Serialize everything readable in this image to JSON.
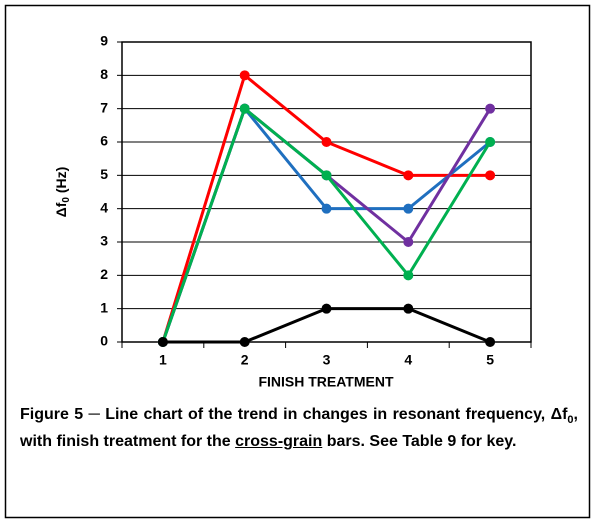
{
  "chart_data": {
    "type": "line",
    "y_label": [
      "Δf",
      "0",
      " (Hz)"
    ],
    "x_label": "FINISH TREATMENT",
    "categories": [
      "1",
      "2",
      "3",
      "4",
      "5"
    ],
    "series": [
      {
        "color": "#ff0000",
        "values": [
          0,
          8,
          6,
          5,
          5
        ]
      },
      {
        "color": "#1f6fbf",
        "values": [
          0,
          7,
          4,
          4,
          6
        ]
      },
      {
        "color": "#7030a0",
        "values": [
          0,
          7,
          5,
          3,
          7
        ]
      },
      {
        "color": "#00b050",
        "values": [
          0,
          7,
          5,
          2,
          6
        ]
      },
      {
        "color": "#000000",
        "values": [
          0,
          0,
          1,
          1,
          0
        ]
      }
    ],
    "ylim": [
      0,
      9
    ],
    "yticks": [
      0,
      1,
      2,
      3,
      4,
      5,
      6,
      7,
      8,
      9
    ],
    "grid": true,
    "caption": [
      "Figure 5 ─ Line chart of the trend in changes in resonant frequency, Δf",
      "0",
      ", with finish treatment for the ",
      "cross-grain",
      " bars.  See Table 9 for key."
    ]
  }
}
